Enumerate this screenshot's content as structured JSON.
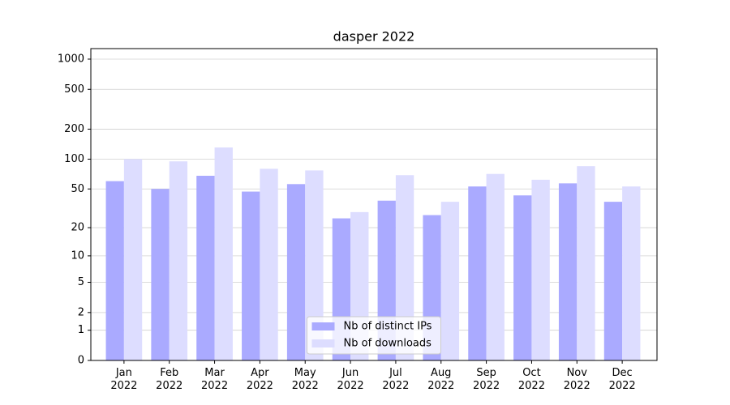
{
  "chart_data": {
    "type": "bar",
    "title": "dasper 2022",
    "yscale": "log1p",
    "grid": true,
    "legend": "lower center",
    "categories": [
      "Jan\n2022",
      "Feb\n2022",
      "Mar\n2022",
      "Apr\n2022",
      "May\n2022",
      "Jun\n2022",
      "Jul\n2022",
      "Aug\n2022",
      "Sep\n2022",
      "Oct\n2022",
      "Nov\n2022",
      "Dec\n2022"
    ],
    "series": [
      {
        "name": "Nb of distinct IPs",
        "color": "#aaaaff",
        "values": [
          60,
          50,
          68,
          47,
          56,
          25,
          38,
          27,
          53,
          43,
          57,
          37
        ]
      },
      {
        "name": "Nb of downloads",
        "color": "#ddddff",
        "values": [
          100,
          95,
          131,
          80,
          77,
          29,
          69,
          37,
          71,
          62,
          85,
          53
        ]
      }
    ],
    "ylim": [
      0,
      1273
    ],
    "yticks": [
      0,
      1,
      2,
      5,
      10,
      20,
      50,
      100,
      200,
      500,
      1000
    ]
  }
}
